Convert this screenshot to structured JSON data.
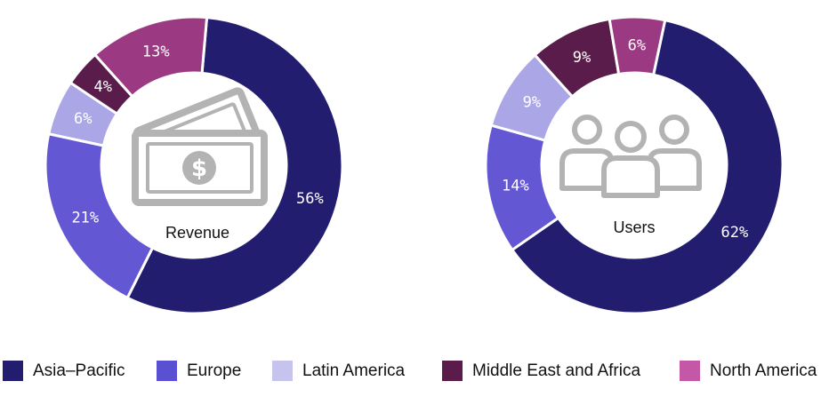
{
  "chart_data": [
    {
      "type": "pie",
      "center_label": "Revenue",
      "center_icon": "money-bills-icon",
      "categories": [
        "Asia–Pacific",
        "Europe",
        "Latin America",
        "Middle East and Africa",
        "North America"
      ],
      "values": [
        56,
        21,
        6,
        4,
        13
      ],
      "data_labels": [
        "56%",
        "21%",
        "6%",
        "4%",
        "13%"
      ],
      "colors": [
        "#231d6f",
        "#6457d4",
        "#aba6e6",
        "#5a1d4b",
        "#9b3a82"
      ]
    },
    {
      "type": "pie",
      "center_label": "Users",
      "center_icon": "people-group-icon",
      "categories": [
        "Asia–Pacific",
        "Europe",
        "Latin America",
        "Middle East and Africa",
        "North America"
      ],
      "values": [
        62,
        14,
        9,
        9,
        6
      ],
      "data_labels": [
        "62%",
        "14%",
        "9%",
        "9%",
        "6%"
      ],
      "colors": [
        "#231d6f",
        "#6457d4",
        "#aba6e6",
        "#5a1d4b",
        "#9b3a82"
      ]
    }
  ],
  "legend": {
    "items": [
      {
        "label": "Asia–Pacific",
        "color": "#231d6f"
      },
      {
        "label": "Europe",
        "color": "#5a50d2"
      },
      {
        "label": "Latin America",
        "color": "#c6c3ef"
      },
      {
        "label": "Middle East and Africa",
        "color": "#5a1d4b"
      },
      {
        "label": "North America",
        "color": "#c457a6"
      }
    ]
  }
}
